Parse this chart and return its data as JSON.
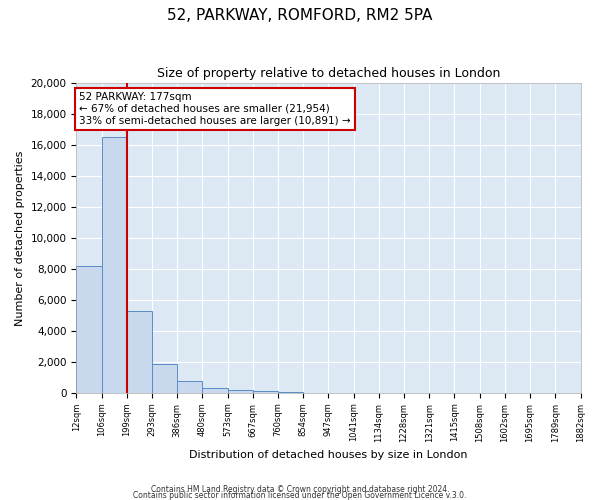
{
  "title": "52, PARKWAY, ROMFORD, RM2 5PA",
  "subtitle": "Size of property relative to detached houses in London",
  "xlabel": "Distribution of detached houses by size in London",
  "ylabel": "Number of detached properties",
  "bar_values": [
    8200,
    16500,
    5300,
    1850,
    750,
    300,
    200,
    100,
    70,
    0,
    0,
    0,
    0,
    0,
    0,
    0,
    0,
    0,
    0,
    0
  ],
  "bar_labels": [
    "12sqm",
    "106sqm",
    "199sqm",
    "293sqm",
    "386sqm",
    "480sqm",
    "573sqm",
    "667sqm",
    "760sqm",
    "854sqm",
    "947sqm",
    "1041sqm",
    "1134sqm",
    "1228sqm",
    "1321sqm",
    "1415sqm",
    "1508sqm",
    "1602sqm",
    "1695sqm",
    "1789sqm",
    "1882sqm"
  ],
  "ylim": [
    0,
    20000
  ],
  "yticks": [
    0,
    2000,
    4000,
    6000,
    8000,
    10000,
    12000,
    14000,
    16000,
    18000,
    20000
  ],
  "bar_color": "#c9d9ed",
  "bar_edge_color": "#5b8cc8",
  "property_line_x": 2.0,
  "property_line_color": "#cc0000",
  "annotation_title": "52 PARKWAY: 177sqm",
  "annotation_line1": "← 67% of detached houses are smaller (21,954)",
  "annotation_line2": "33% of semi-detached houses are larger (10,891) →",
  "annotation_box_color": "#ffffff",
  "annotation_box_edge": "#cc0000",
  "background_color": "#dce9f5",
  "footer1": "Contains HM Land Registry data © Crown copyright and database right 2024.",
  "footer2": "Contains public sector information licensed under the Open Government Licence v.3.0."
}
